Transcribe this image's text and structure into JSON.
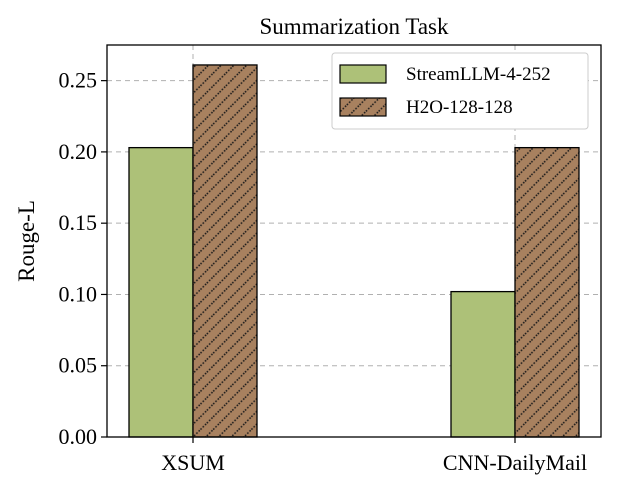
{
  "chart_data": {
    "type": "bar",
    "title": "Summarization Task",
    "xlabel": "",
    "ylabel": "Rouge-L",
    "categories": [
      "XSUM",
      "CNN-DailyMail"
    ],
    "series": [
      {
        "name": "StreamLLM-4-252",
        "values": [
          0.203,
          0.102
        ],
        "color": "#adc178",
        "hatch": "none"
      },
      {
        "name": "H2O-128-128",
        "values": [
          0.261,
          0.203
        ],
        "color": "#a8815f",
        "hatch": "diagonal-dotted"
      }
    ],
    "ylim": [
      0,
      0.275
    ],
    "yticks": [
      "0.00",
      "0.05",
      "0.10",
      "0.15",
      "0.20",
      "0.25"
    ],
    "ytick_values": [
      0,
      0.05,
      0.1,
      0.15,
      0.2,
      0.25
    ],
    "grid": true,
    "legend": "top-right"
  }
}
